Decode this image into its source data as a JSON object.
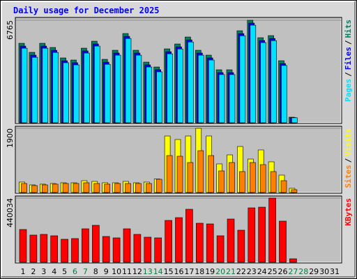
{
  "title": "Daily usage for December 2025",
  "legend_separator": "/",
  "chart_data": [
    {
      "type": "bar",
      "ylim": [
        0,
        6765
      ],
      "yticks": [
        6765
      ],
      "series": [
        {
          "name": "Hits",
          "color": "#008060",
          "values": [
            5244,
            4646,
            5244,
            4968,
            4278,
            4140,
            4922,
            5382,
            4186,
            4784,
            5888,
            4784,
            4002,
            3680,
            4876,
            5198,
            5658,
            4784,
            4462,
            3496,
            3496,
            6072,
            6765,
            5612,
            5750,
            4094,
            368,
            0,
            0,
            0,
            0
          ]
        },
        {
          "name": "Files",
          "color": "#0000ff",
          "values": [
            5060,
            4460,
            5060,
            4780,
            4090,
            3960,
            4740,
            5200,
            4000,
            4600,
            5700,
            4600,
            3820,
            3500,
            4690,
            5010,
            5470,
            4600,
            4280,
            3310,
            3310,
            5880,
            6580,
            5430,
            5560,
            3910,
            340,
            0,
            0,
            0,
            0
          ]
        },
        {
          "name": "Pages",
          "color": "#00e0ff",
          "values": [
            4920,
            4320,
            4920,
            4640,
            3960,
            3820,
            4600,
            5060,
            3860,
            4460,
            5560,
            4460,
            3680,
            3360,
            4550,
            4870,
            5330,
            4460,
            4140,
            3180,
            3180,
            5740,
            6440,
            5290,
            5420,
            3780,
            330,
            0,
            0,
            0,
            0
          ]
        }
      ]
    },
    {
      "type": "bar",
      "ylim": [
        0,
        1900
      ],
      "yticks": [
        1900
      ],
      "series": [
        {
          "name": "Visits",
          "color": "#ffff00",
          "values": [
            310,
            227,
            248,
            268,
            289,
            289,
            351,
            330,
            289,
            289,
            330,
            289,
            310,
            400,
            1673,
            1569,
            1673,
            1900,
            1673,
            847,
            1115,
            1363,
            991,
            1260,
            909,
            516,
            124,
            0,
            0,
            0,
            0
          ]
        },
        {
          "name": "Sites",
          "color": "#ff8000",
          "values": [
            268,
            207,
            227,
            248,
            268,
            268,
            289,
            268,
            248,
            268,
            268,
            268,
            268,
            392,
            1094,
            1074,
            888,
            1239,
            1094,
            640,
            888,
            620,
            888,
            826,
            620,
            351,
            83,
            0,
            0,
            0,
            0
          ]
        }
      ]
    },
    {
      "type": "bar",
      "ylim": [
        0,
        440034
      ],
      "yticks": [
        440034
      ],
      "categories": [
        "1",
        "2",
        "3",
        "4",
        "5",
        "6",
        "7",
        "8",
        "9",
        "10",
        "11",
        "12",
        "13",
        "14",
        "15",
        "16",
        "17",
        "18",
        "19",
        "20",
        "21",
        "22",
        "23",
        "24",
        "25",
        "26",
        "27",
        "28",
        "29",
        "30",
        "31"
      ],
      "category_colors": [
        "#000000",
        "#000000",
        "#000000",
        "#000000",
        "#000000",
        "#008040",
        "#008040",
        "#000000",
        "#000000",
        "#000000",
        "#000000",
        "#000000",
        "#008040",
        "#008040",
        "#000000",
        "#000000",
        "#000000",
        "#000000",
        "#000000",
        "#008040",
        "#008040",
        "#000000",
        "#000000",
        "#000000",
        "#000000",
        "#000000",
        "#008040",
        "#008040",
        "#000000",
        "#000000",
        "#000000"
      ],
      "series": [
        {
          "name": "KBytes",
          "color": "#ff0000",
          "values": [
            224801,
            186537,
            191320,
            181754,
            157839,
            162622,
            229584,
            253499,
            176971,
            167405,
            229584,
            191320,
            172188,
            167405,
            286980,
            306112,
            363508,
            267848,
            263065,
            181754,
            296546,
            220018,
            373074,
            377857,
            440034,
            282197,
            23915,
            0,
            0,
            0,
            0
          ]
        }
      ]
    }
  ]
}
